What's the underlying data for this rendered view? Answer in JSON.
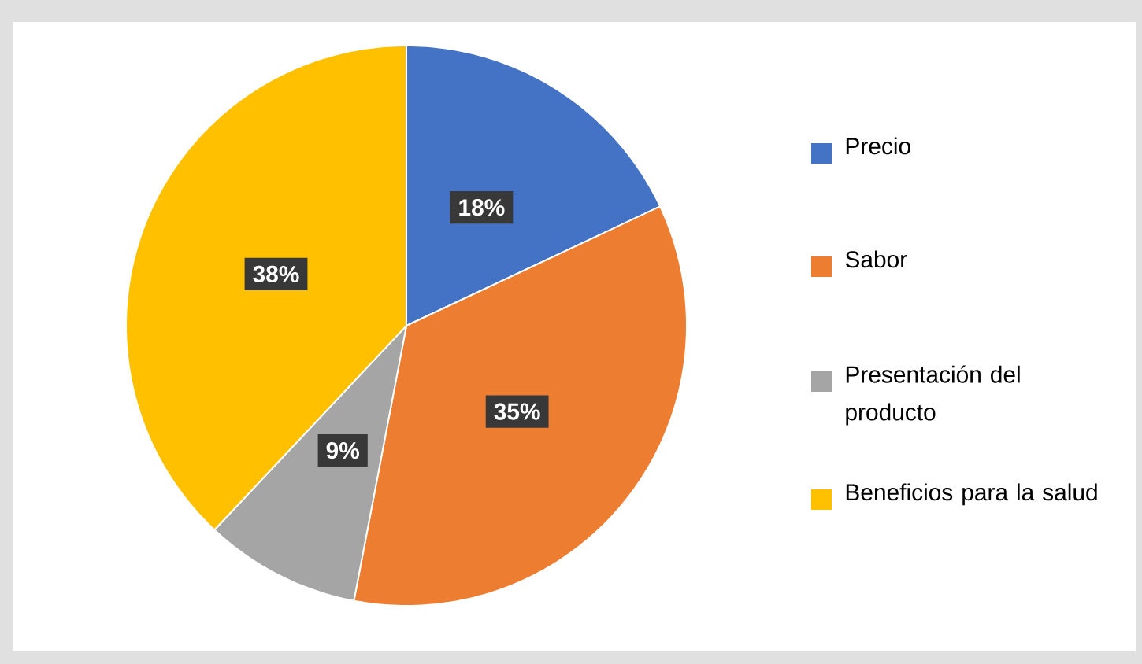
{
  "chart_data": {
    "type": "pie",
    "categories": [
      "Precio",
      "Sabor",
      "Presentación del producto",
      "Beneficios para la salud"
    ],
    "values": [
      18,
      35,
      9,
      38
    ],
    "colors": [
      "#4472c4",
      "#ed7d31",
      "#a5a5a5",
      "#ffc000"
    ],
    "value_labels": [
      "18%",
      "35%",
      "9%",
      "38%"
    ],
    "legend": "right"
  }
}
